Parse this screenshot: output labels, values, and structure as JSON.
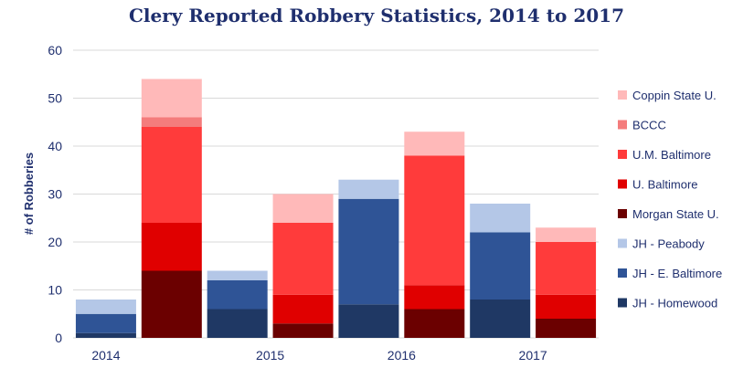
{
  "chart_data": {
    "type": "bar",
    "stacked": true,
    "title": "Clery Reported Robbery Statistics, 2014 to 2017",
    "ylabel": "# of Robberies",
    "xlabel": "",
    "ylim": [
      0,
      60
    ],
    "yticks": [
      0,
      10,
      20,
      30,
      40,
      50,
      60
    ],
    "grid": true,
    "legend_position": "right",
    "x_tick_labels": [
      "2014",
      "2015",
      "2016",
      "2017"
    ],
    "bars": [
      {
        "group": "2014",
        "institution": "JH"
      },
      {
        "group": "2014",
        "institution": "Other"
      },
      {
        "group": "2015",
        "institution": "JH"
      },
      {
        "group": "2015",
        "institution": "Other"
      },
      {
        "group": "2016",
        "institution": "JH"
      },
      {
        "group": "2016",
        "institution": "Other"
      },
      {
        "group": "2017",
        "institution": "JH"
      },
      {
        "group": "2017",
        "institution": "Other"
      }
    ],
    "series": [
      {
        "name": "JH - Homewood",
        "color": "#1f3864",
        "values": [
          1,
          0,
          6,
          0,
          7,
          0,
          8,
          0
        ]
      },
      {
        "name": "JH - E. Baltimore",
        "color": "#2f5496",
        "values": [
          4,
          0,
          6,
          0,
          22,
          0,
          14,
          0
        ]
      },
      {
        "name": "JH - Peabody",
        "color": "#b4c7e7",
        "values": [
          3,
          0,
          2,
          0,
          4,
          0,
          6,
          0
        ]
      },
      {
        "name": "Morgan State U.",
        "color": "#6b0000",
        "values": [
          0,
          14,
          0,
          3,
          0,
          6,
          0,
          4
        ]
      },
      {
        "name": "U. Baltimore",
        "color": "#e00000",
        "values": [
          0,
          10,
          0,
          6,
          0,
          5,
          0,
          5
        ]
      },
      {
        "name": "U.M. Baltimore",
        "color": "#ff3b3b",
        "values": [
          0,
          20,
          0,
          15,
          0,
          27,
          0,
          11
        ]
      },
      {
        "name": "BCCC",
        "color": "#f47c7c",
        "values": [
          0,
          2,
          0,
          0,
          0,
          0,
          0,
          0
        ]
      },
      {
        "name": "Coppin State U.",
        "color": "#ffb9b9",
        "values": [
          0,
          8,
          0,
          6,
          0,
          5,
          0,
          3
        ]
      }
    ],
    "legend_order": [
      "Coppin State U.",
      "BCCC",
      "U.M. Baltimore",
      "U. Baltimore",
      "Morgan State U.",
      "JH - Peabody",
      "JH - E. Baltimore",
      "JH - Homewood"
    ]
  }
}
